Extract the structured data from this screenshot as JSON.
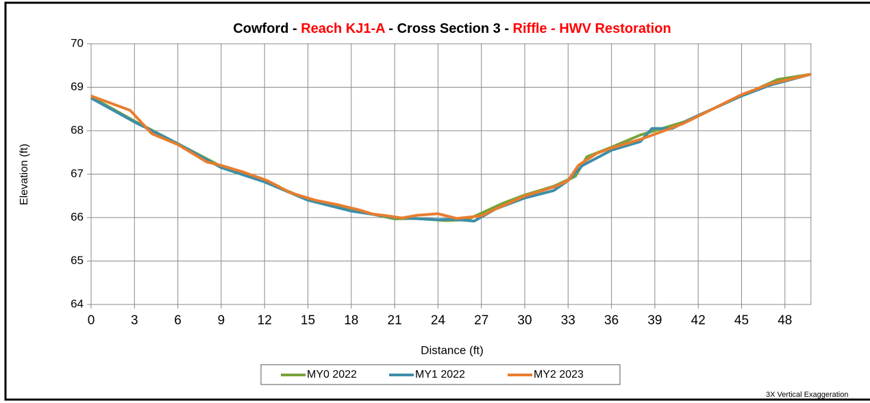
{
  "chart_data": {
    "type": "line",
    "title_parts": [
      {
        "text": "Cowford - ",
        "color": "#000000"
      },
      {
        "text": "Reach KJ1-A",
        "color": "#ff0000"
      },
      {
        "text": " - Cross Section 3 - ",
        "color": "#000000"
      },
      {
        "text": "Riffle - HWV Restoration",
        "color": "#ff0000"
      }
    ],
    "x_label": "Distance (ft)",
    "y_label": "Elevation (ft)",
    "annotation": "3X Vertical Exaggeration",
    "xlim": [
      0,
      49.8
    ],
    "ylim": [
      64,
      70
    ],
    "xticks": [
      0,
      3,
      6,
      9,
      12,
      15,
      18,
      21,
      24,
      27,
      30,
      33,
      36,
      39,
      42,
      45,
      48
    ],
    "yticks": [
      64,
      65,
      66,
      67,
      68,
      69,
      70
    ],
    "grid": true,
    "legend": "bottom",
    "series": [
      {
        "name": "MY0 2022",
        "color": "#77a33a",
        "x": [
          0,
          3,
          6,
          9,
          12,
          15,
          18,
          21,
          22.5,
          24.5,
          26,
          28.5,
          30,
          32,
          33.5,
          34.3,
          36,
          38,
          41,
          44,
          47.5,
          49.8
        ],
        "values": [
          68.78,
          68.22,
          67.7,
          67.18,
          66.83,
          66.42,
          66.18,
          65.97,
          65.98,
          65.93,
          65.95,
          66.33,
          66.52,
          66.72,
          66.95,
          67.4,
          67.62,
          67.9,
          68.2,
          68.65,
          69.18,
          69.3
        ]
      },
      {
        "name": "MY1 2022",
        "color": "#3d8ea8",
        "x": [
          0,
          3,
          6,
          9,
          12,
          15,
          18,
          21,
          24,
          25,
          26.5,
          28,
          30,
          32,
          33,
          34,
          36,
          38,
          38.8,
          40.2,
          42,
          45,
          47,
          49.8
        ],
        "values": [
          68.75,
          68.2,
          67.7,
          67.15,
          66.82,
          66.4,
          66.15,
          66.0,
          65.95,
          65.96,
          65.92,
          66.2,
          66.45,
          66.62,
          66.85,
          67.2,
          67.55,
          67.75,
          68.05,
          68.05,
          68.35,
          68.8,
          69.05,
          69.3
        ]
      },
      {
        "name": "MY2 2023",
        "color": "#e87d2e",
        "x": [
          0,
          2.7,
          4.2,
          6,
          8,
          9,
          10.5,
          12.2,
          13.8,
          15.5,
          17,
          18.5,
          19.5,
          20.5,
          21.5,
          22.5,
          24,
          25.3,
          27,
          28,
          30,
          32,
          33,
          33.7,
          35,
          36,
          38,
          39.5,
          41,
          43,
          45,
          47,
          49.8
        ],
        "values": [
          68.8,
          68.47,
          67.93,
          67.68,
          67.28,
          67.2,
          67.05,
          66.85,
          66.57,
          66.4,
          66.3,
          66.18,
          66.08,
          66.04,
          65.99,
          66.05,
          66.09,
          65.98,
          66.04,
          66.2,
          66.5,
          66.7,
          66.85,
          67.2,
          67.48,
          67.6,
          67.8,
          67.98,
          68.17,
          68.5,
          68.83,
          69.08,
          69.3
        ]
      }
    ]
  }
}
